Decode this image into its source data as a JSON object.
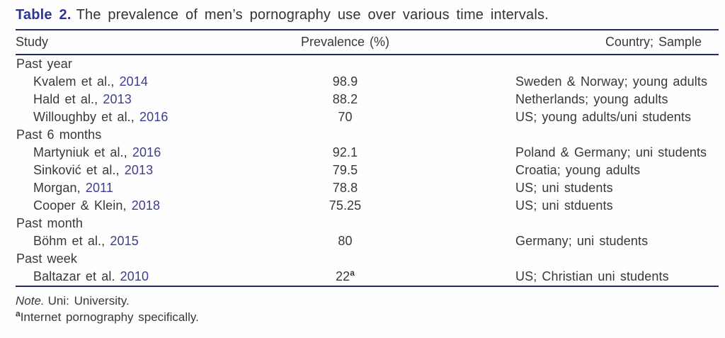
{
  "caption": {
    "label": "Table 2.",
    "text": "The prevalence of men’s pornography use over various time intervals."
  },
  "columns": [
    "Study",
    "Prevalence (%)",
    "Country; Sample"
  ],
  "sections": [
    {
      "header": "Past year",
      "rows": [
        {
          "study": "Kvalem et al.,",
          "year": "2014",
          "prevalence": "98.9",
          "country": "Sweden & Norway; young adults"
        },
        {
          "study": "Hald et al.,",
          "year": "2013",
          "prevalence": "88.2",
          "country": "Netherlands; young adults"
        },
        {
          "study": "Willoughby et al.,",
          "year": "2016",
          "prevalence": "70",
          "country": "US; young adults/uni students"
        }
      ]
    },
    {
      "header": "Past 6 months",
      "rows": [
        {
          "study": "Martyniuk et al.,",
          "year": "2016",
          "prevalence": "92.1",
          "country": "Poland & Germany; uni students"
        },
        {
          "study": "Sinković et al.,",
          "year": "2013",
          "prevalence": "79.5",
          "country": "Croatia; young adults"
        },
        {
          "study": "Morgan,",
          "year": "2011",
          "prevalence": "78.8",
          "country": "US; uni students"
        },
        {
          "study": "Cooper & Klein,",
          "year": "2018",
          "prevalence": "75.25",
          "country": "US; uni stduents"
        }
      ]
    },
    {
      "header": "Past month",
      "rows": [
        {
          "study": "Böhm et al.,",
          "year": "2015",
          "prevalence": "80",
          "country": "Germany; uni students"
        }
      ]
    },
    {
      "header": "Past week",
      "rows": [
        {
          "study": "Baltazar et al.",
          "year": "2010",
          "prevalence": "22",
          "prevalence_sup": "a",
          "country": "US; Christian uni students"
        }
      ]
    }
  ],
  "notes": {
    "note_label": "Note.",
    "note_text": "Uni: University.",
    "footnote_marker": "a",
    "footnote_text": "Internet pornography specifically."
  },
  "colors": {
    "rule": "#222c5e",
    "caption_label": "#2b3590",
    "year_link": "#3c3e92",
    "body_text": "#383838"
  }
}
